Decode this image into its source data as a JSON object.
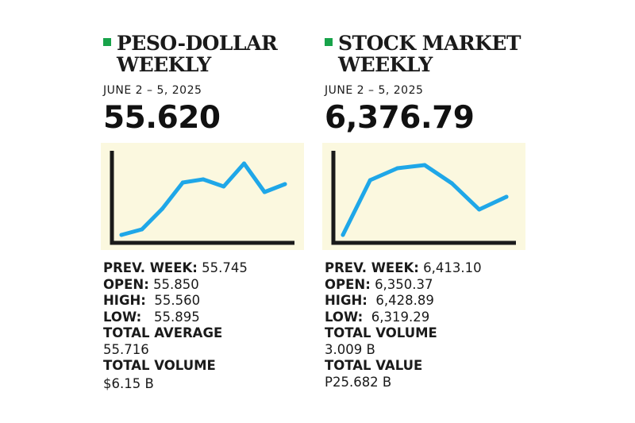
{
  "peso": {
    "title_line1": "PESO-DOLLAR",
    "title_line2": "WEEKLY",
    "date": "JUNE 2 – 5, 2025",
    "value": "55.620",
    "prev_week_label": "PREV. WEEK:",
    "prev_week_value": "55.745",
    "open_label": "OPEN:",
    "open_value": "55.850",
    "high_label": "HIGH:",
    "high_value": "55.560",
    "low_label": "LOW:",
    "low_value": "55.895",
    "total_average_label": "TOTAL AVERAGE",
    "total_average_value": "55.716",
    "total_volume_label": "TOTAL VOLUME",
    "total_volume_value": "$6.15 B"
  },
  "stock": {
    "title_line1": "STOCK MARKET",
    "title_line2": "WEEKLY",
    "date": "JUNE 2 – 5, 2025",
    "value": "6,376.79",
    "prev_week_label": "PREV. WEEK:",
    "prev_week_value": "6,413.10",
    "open_label": "OPEN:",
    "open_value": "6,350.37",
    "high_label": "HIGH:",
    "high_value": "6,428.89",
    "low_label": "LOW:",
    "low_value": "6,319.29",
    "total_volume_label": "TOTAL VOLUME",
    "total_volume_value": "3.009 B",
    "total_value_label": "TOTAL VALUE",
    "total_value_value": "P25.682 B"
  },
  "colors": {
    "bullet": "#18a34a",
    "line": "#1fa7e8",
    "chart_bg": "#fbf8df",
    "axis": "#1a1a1a"
  },
  "chart_data": [
    {
      "type": "line",
      "series": [
        {
          "values": [
            0.0,
            0.07,
            0.33,
            0.66,
            0.7,
            0.61,
            0.9,
            0.54,
            0.64
          ]
        }
      ],
      "ylim": [
        0,
        1
      ],
      "grid": false,
      "legend": "none"
    },
    {
      "type": "line",
      "series": [
        {
          "values": [
            0.0,
            0.69,
            0.84,
            0.88,
            0.65,
            0.32,
            0.48
          ]
        }
      ],
      "ylim": [
        0,
        1
      ],
      "grid": false,
      "legend": "none"
    }
  ]
}
